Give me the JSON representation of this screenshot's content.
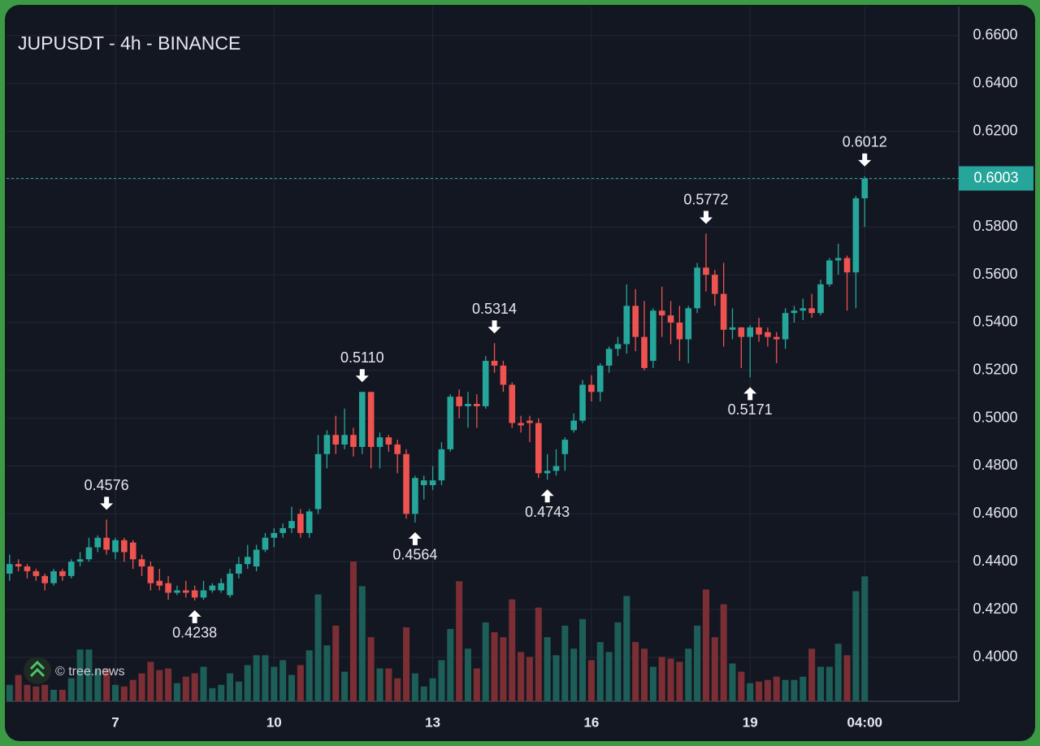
{
  "chart_data": {
    "type": "candlestick",
    "title": "JUPUSDT - 4h - BINANCE",
    "watermark": "© tree.news",
    "categories": [
      null,
      null,
      null,
      null,
      null,
      null,
      null,
      null,
      null,
      null,
      null,
      null,
      "7",
      null,
      null,
      null,
      null,
      null,
      null,
      null,
      null,
      null,
      null,
      null,
      null,
      null,
      null,
      null,
      null,
      null,
      "10",
      null,
      null,
      null,
      null,
      null,
      null,
      null,
      null,
      null,
      null,
      null,
      null,
      null,
      null,
      null,
      null,
      null,
      "13",
      null,
      null,
      null,
      null,
      null,
      null,
      null,
      null,
      null,
      null,
      null,
      null,
      null,
      null,
      null,
      null,
      null,
      "16",
      null,
      null,
      null,
      null,
      null,
      null,
      null,
      null,
      null,
      null,
      null,
      null,
      null,
      null,
      null,
      null,
      null,
      "19",
      null,
      null,
      null,
      null,
      null,
      null,
      null,
      null,
      null,
      null,
      null,
      null,
      "04:00"
    ],
    "open": [
      0.435,
      0.439,
      0.438,
      0.436,
      0.434,
      0.431,
      0.436,
      0.434,
      0.44,
      0.441,
      0.446,
      0.45,
      0.444,
      0.449,
      0.448,
      0.441,
      0.438,
      0.432,
      0.431,
      0.427,
      0.428,
      0.428,
      0.425,
      0.428,
      0.428,
      0.426,
      0.435,
      0.439,
      0.438,
      0.445,
      0.45,
      0.452,
      0.454,
      0.46,
      0.452,
      0.462,
      0.485,
      0.493,
      0.489,
      0.493,
      0.488,
      0.511,
      0.488,
      0.492,
      0.489,
      0.485,
      0.46,
      0.472,
      0.472,
      0.474,
      0.487,
      0.509,
      0.505,
      0.506,
      0.505,
      0.524,
      0.522,
      0.514,
      0.498,
      0.499,
      0.498,
      0.477,
      0.478,
      0.485,
      0.495,
      0.499,
      0.514,
      0.511,
      0.522,
      0.529,
      0.531,
      0.547,
      0.534,
      0.524,
      0.545,
      0.543,
      0.54,
      0.533,
      0.546,
      0.563,
      0.56,
      0.552,
      0.537,
      0.538,
      0.534,
      0.538,
      0.536,
      0.534,
      0.533,
      0.544,
      0.545,
      0.546,
      0.544,
      0.556,
      0.566,
      0.567,
      0.561,
      0.592
    ],
    "high": [
      0.443,
      0.441,
      0.439,
      0.437,
      0.435,
      0.437,
      0.437,
      0.441,
      0.444,
      0.45,
      0.451,
      0.4576,
      0.45,
      0.45,
      0.449,
      0.443,
      0.44,
      0.437,
      0.434,
      0.43,
      0.432,
      0.43,
      0.432,
      0.431,
      0.433,
      0.437,
      0.442,
      0.447,
      0.447,
      0.452,
      0.454,
      0.456,
      0.463,
      0.462,
      0.462,
      0.493,
      0.495,
      0.501,
      0.504,
      0.496,
      0.511,
      0.511,
      0.494,
      0.493,
      0.491,
      0.487,
      0.476,
      0.476,
      0.48,
      0.49,
      0.51,
      0.512,
      0.511,
      0.51,
      0.526,
      0.5314,
      0.524,
      0.515,
      0.501,
      0.501,
      0.5,
      0.485,
      0.487,
      0.492,
      0.502,
      0.516,
      0.518,
      0.523,
      0.53,
      0.534,
      0.556,
      0.554,
      0.549,
      0.546,
      0.555,
      0.549,
      0.547,
      0.547,
      0.565,
      0.5772,
      0.562,
      0.565,
      0.546,
      0.538,
      0.539,
      0.542,
      0.538,
      0.536,
      0.546,
      0.547,
      0.55,
      0.552,
      0.558,
      0.567,
      0.573,
      0.568,
      0.593,
      0.6012
    ],
    "low": [
      0.432,
      0.436,
      0.433,
      0.432,
      0.428,
      0.43,
      0.432,
      0.433,
      0.438,
      0.44,
      0.444,
      0.443,
      0.441,
      0.44,
      0.437,
      0.434,
      0.428,
      0.428,
      0.424,
      0.426,
      0.425,
      0.4238,
      0.424,
      0.427,
      0.427,
      0.425,
      0.433,
      0.437,
      0.436,
      0.444,
      0.446,
      0.45,
      0.452,
      0.45,
      0.45,
      0.46,
      0.479,
      0.485,
      0.487,
      0.484,
      0.485,
      0.479,
      0.479,
      0.486,
      0.477,
      0.458,
      0.4564,
      0.466,
      0.47,
      0.472,
      0.486,
      0.5,
      0.496,
      0.496,
      0.504,
      0.519,
      0.511,
      0.496,
      0.494,
      0.49,
      0.475,
      0.4743,
      0.476,
      0.478,
      0.494,
      0.498,
      0.507,
      0.507,
      0.519,
      0.526,
      0.527,
      0.528,
      0.52,
      0.521,
      0.534,
      0.531,
      0.524,
      0.523,
      0.544,
      0.553,
      0.547,
      0.53,
      0.533,
      0.521,
      0.5171,
      0.532,
      0.53,
      0.523,
      0.529,
      0.54,
      0.541,
      0.542,
      0.543,
      0.555,
      0.56,
      0.545,
      0.546,
      0.58
    ],
    "close": [
      0.439,
      0.438,
      0.436,
      0.434,
      0.431,
      0.436,
      0.434,
      0.44,
      0.441,
      0.446,
      0.45,
      0.445,
      0.449,
      0.444,
      0.441,
      0.438,
      0.431,
      0.43,
      0.427,
      0.428,
      0.427,
      0.425,
      0.428,
      0.43,
      0.431,
      0.435,
      0.439,
      0.442,
      0.445,
      0.45,
      0.452,
      0.454,
      0.457,
      0.452,
      0.461,
      0.485,
      0.493,
      0.489,
      0.493,
      0.488,
      0.511,
      0.488,
      0.492,
      0.489,
      0.485,
      0.46,
      0.475,
      0.474,
      0.474,
      0.487,
      0.509,
      0.505,
      0.506,
      0.505,
      0.524,
      0.522,
      0.514,
      0.498,
      0.497,
      0.498,
      0.477,
      0.478,
      0.48,
      0.491,
      0.499,
      0.514,
      0.511,
      0.522,
      0.529,
      0.531,
      0.547,
      0.534,
      0.521,
      0.545,
      0.543,
      0.54,
      0.533,
      0.546,
      0.563,
      0.56,
      0.552,
      0.537,
      0.538,
      0.534,
      0.538,
      0.535,
      0.534,
      0.533,
      0.544,
      0.545,
      0.546,
      0.544,
      0.556,
      0.566,
      0.567,
      0.561,
      0.592,
      0.6003
    ],
    "volume": [
      20,
      32,
      20,
      18,
      20,
      14,
      14,
      28,
      63,
      63,
      38,
      40,
      20,
      18,
      26,
      34,
      48,
      38,
      40,
      22,
      30,
      34,
      42,
      16,
      20,
      34,
      24,
      44,
      56,
      56,
      42,
      50,
      32,
      44,
      62,
      130,
      68,
      92,
      36,
      170,
      140,
      78,
      40,
      40,
      28,
      90,
      34,
      18,
      28,
      50,
      88,
      146,
      64,
      40,
      96,
      84,
      78,
      124,
      60,
      54,
      114,
      78,
      56,
      92,
      64,
      100,
      50,
      72,
      60,
      96,
      128,
      72,
      64,
      42,
      54,
      52,
      48,
      64,
      92,
      136,
      78,
      118,
      46,
      36,
      22,
      24,
      26,
      30,
      26,
      26,
      30,
      64,
      42,
      42,
      70,
      56,
      134,
      152
    ],
    "up_color": "#26a69a",
    "down_color": "#ef5350",
    "volume_up_color": "#1d5f58",
    "volume_down_color": "#7b2f34",
    "ylim": [
      0.3816,
      0.6722
    ],
    "yticks": [
      {
        "value": 0.4,
        "label": "0.4000"
      },
      {
        "value": 0.42,
        "label": "0.4200"
      },
      {
        "value": 0.44,
        "label": "0.4400"
      },
      {
        "value": 0.46,
        "label": "0.4600"
      },
      {
        "value": 0.48,
        "label": "0.4800"
      },
      {
        "value": 0.5,
        "label": "0.5000"
      },
      {
        "value": 0.52,
        "label": "0.5200"
      },
      {
        "value": 0.54,
        "label": "0.5400"
      },
      {
        "value": 0.56,
        "label": "0.5600"
      },
      {
        "value": 0.58,
        "label": "0.5800"
      },
      {
        "value": 0.6,
        "label": "0.6000"
      },
      {
        "value": 0.62,
        "label": "0.6200"
      },
      {
        "value": 0.64,
        "label": "0.6400"
      },
      {
        "value": 0.66,
        "label": "0.6600"
      }
    ],
    "grid": true,
    "last_price": 0.6003,
    "high_labels": [
      {
        "value": 0.4576,
        "label": "0.4576"
      },
      {
        "value": 0.511,
        "label": "0.5110"
      },
      {
        "value": 0.5314,
        "label": "0.5314"
      },
      {
        "value": 0.5772,
        "label": "0.5772"
      },
      {
        "value": 0.6012,
        "label": "0.6012"
      }
    ],
    "low_labels": [
      {
        "value": 0.4238,
        "label": "0.4238"
      },
      {
        "value": 0.4564,
        "label": "0.4564"
      },
      {
        "value": 0.4743,
        "label": "0.4743"
      },
      {
        "value": 0.5171,
        "label": "0.5171"
      }
    ]
  }
}
